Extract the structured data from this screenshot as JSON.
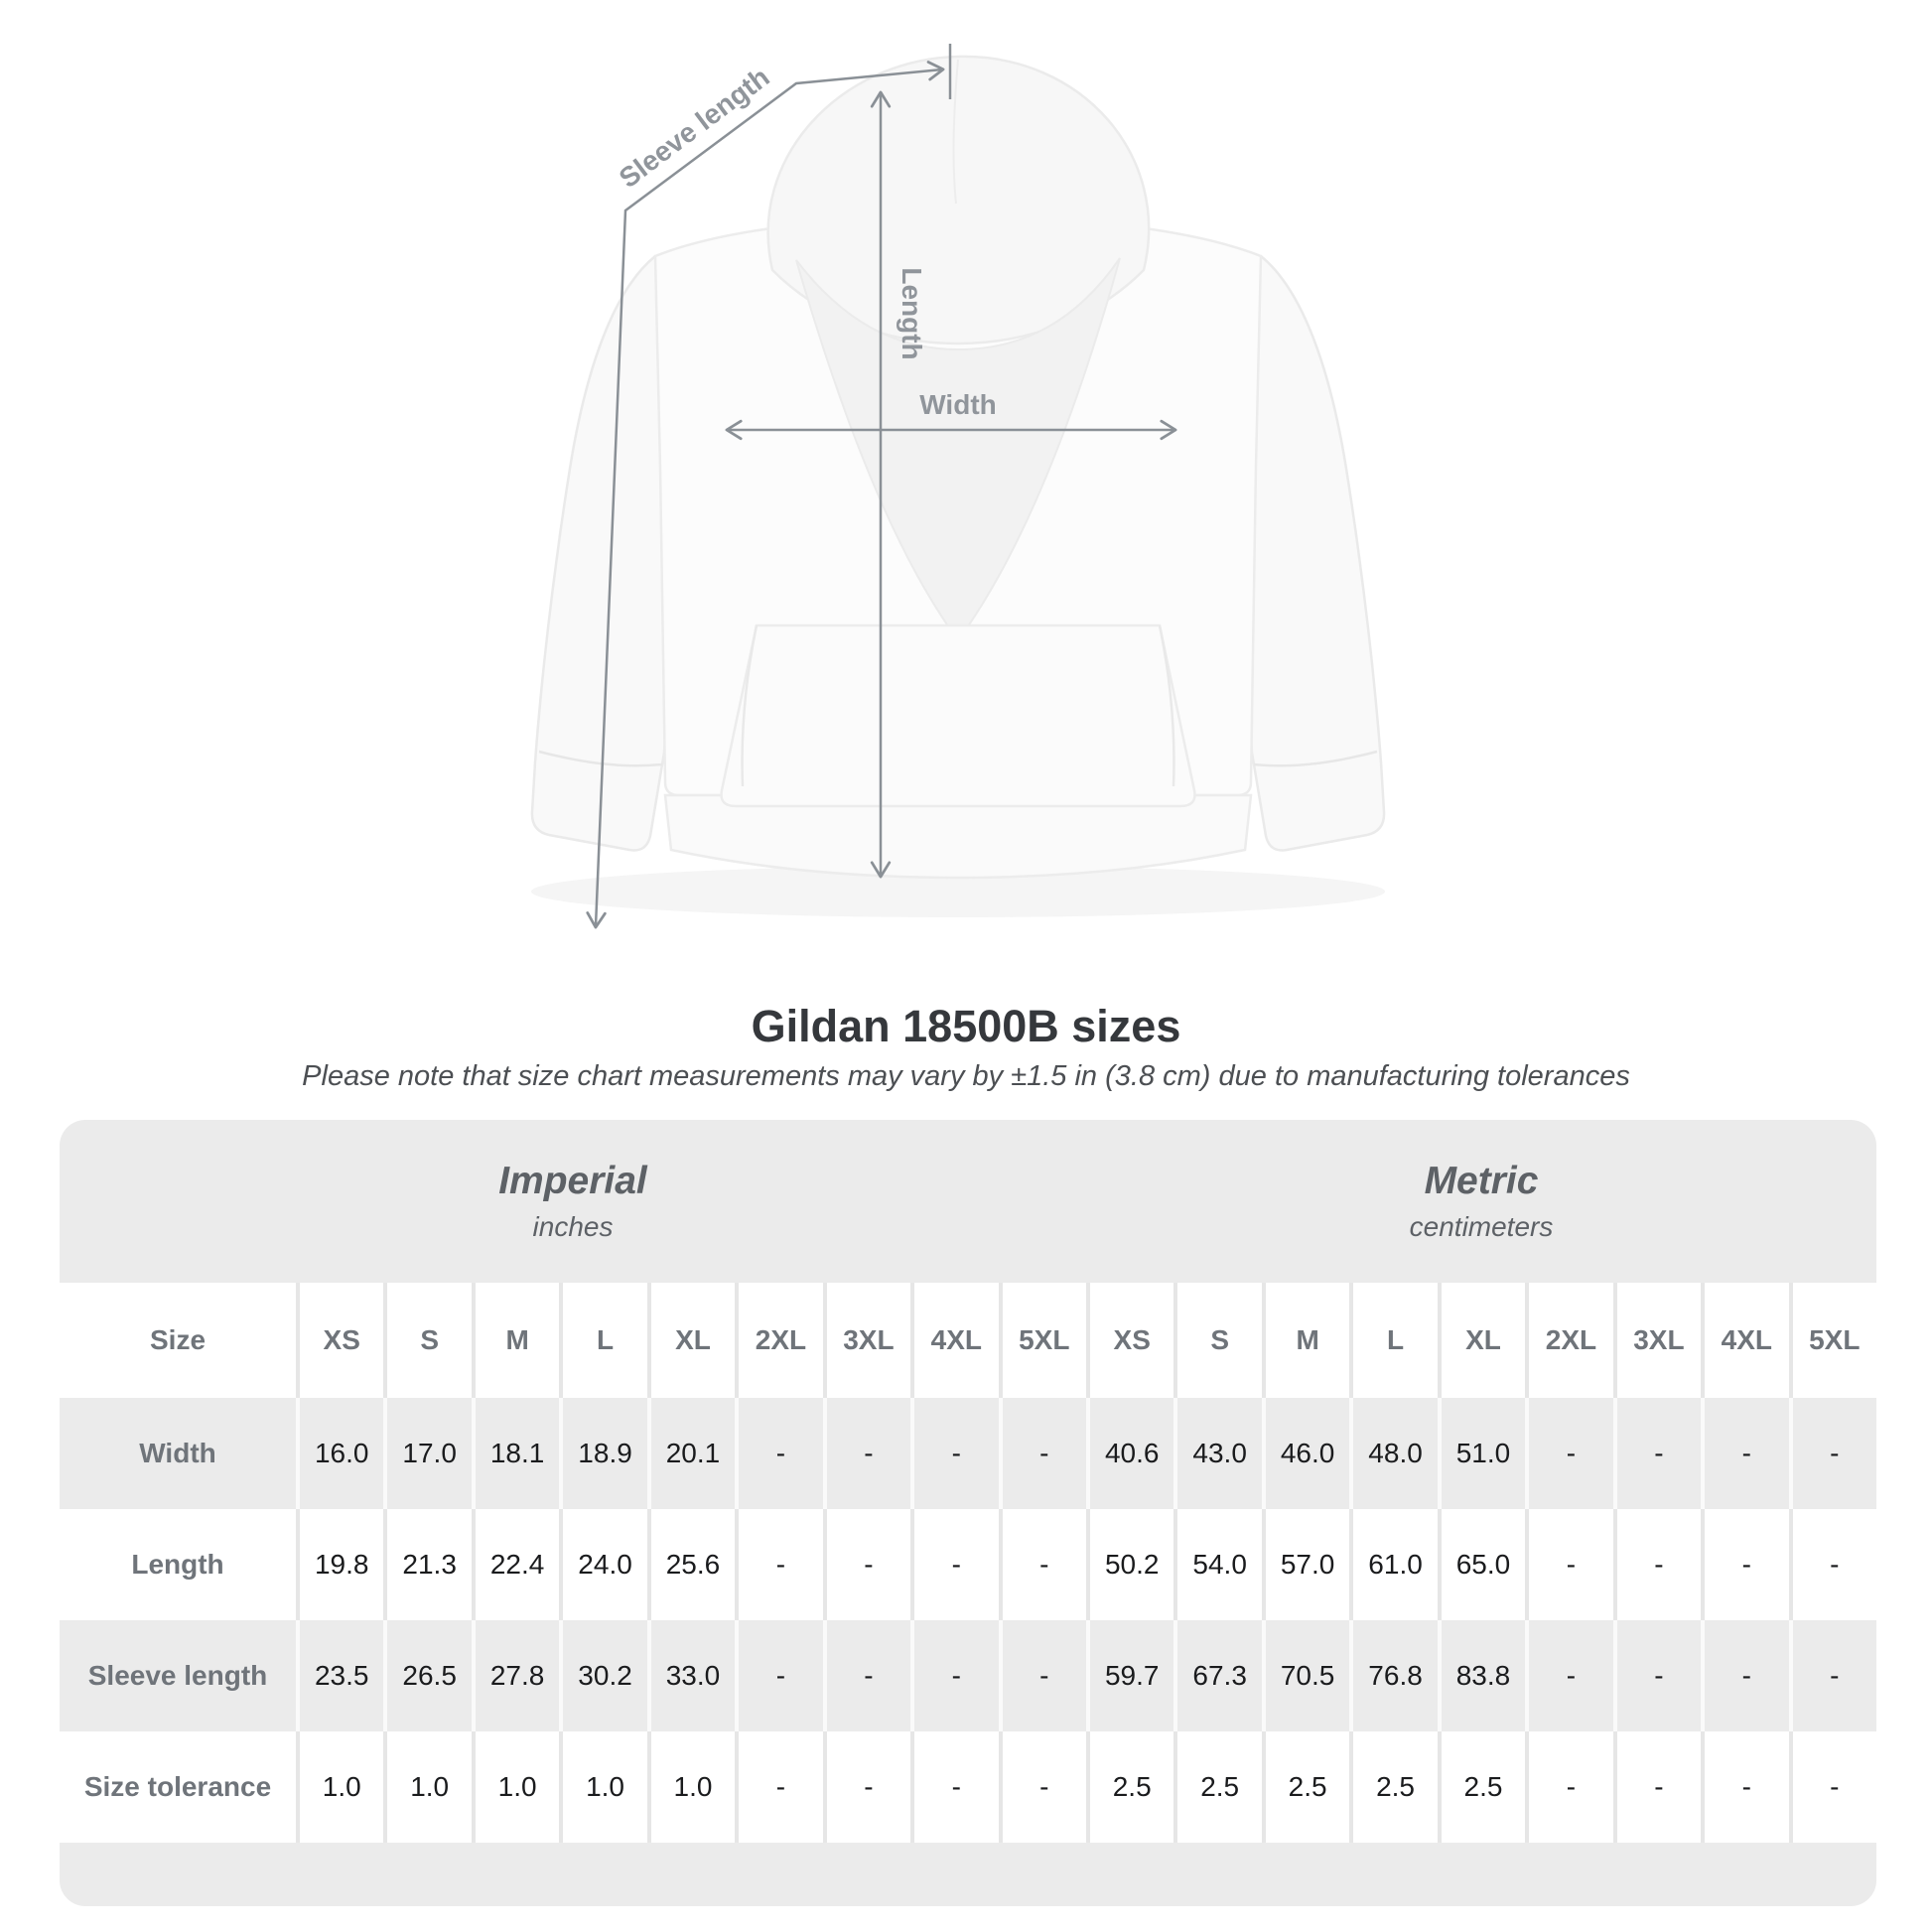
{
  "chart_data": {
    "type": "table",
    "title": "Gildan 18500B sizes",
    "subtitle": "Please note that size chart measurements may vary by ±1.5 in (3.8 cm) due to manufacturing tolerances",
    "corner_label": "Size",
    "sections": [
      {
        "label": "Imperial",
        "units": "inches"
      },
      {
        "label": "Metric",
        "units": "centimeters"
      }
    ],
    "size_columns": [
      "XS",
      "S",
      "M",
      "L",
      "XL",
      "2XL",
      "3XL",
      "4XL",
      "5XL"
    ],
    "rows": [
      {
        "label": "Width",
        "imperial": [
          16.0,
          17.0,
          18.1,
          18.9,
          20.1,
          null,
          null,
          null,
          null
        ],
        "metric": [
          40.6,
          43.0,
          46.0,
          48.0,
          51.0,
          null,
          null,
          null,
          null
        ]
      },
      {
        "label": "Length",
        "imperial": [
          19.8,
          21.3,
          22.4,
          24.0,
          25.6,
          null,
          null,
          null,
          null
        ],
        "metric": [
          50.2,
          54.0,
          57.0,
          61.0,
          65.0,
          null,
          null,
          null,
          null
        ]
      },
      {
        "label": "Sleeve length",
        "imperial": [
          23.5,
          26.5,
          27.8,
          30.2,
          33.0,
          null,
          null,
          null,
          null
        ],
        "metric": [
          59.7,
          67.3,
          70.5,
          76.8,
          83.8,
          null,
          null,
          null,
          null
        ]
      },
      {
        "label": "Size tolerance",
        "imperial": [
          1.0,
          1.0,
          1.0,
          1.0,
          1.0,
          null,
          null,
          null,
          null
        ],
        "metric": [
          2.5,
          2.5,
          2.5,
          2.5,
          2.5,
          null,
          null,
          null,
          null
        ]
      }
    ],
    "missing_value_display": "-",
    "layout": {
      "legend": false,
      "grid": false,
      "row_striping": "white/gray alternating"
    }
  },
  "diagram": {
    "labels": {
      "sleeve_length": "Sleeve length",
      "length": "Length",
      "width": "Width"
    }
  },
  "colors": {
    "measure_line": "#8a9096",
    "measure_label": "#90959b",
    "card_bg": "#ebebeb",
    "value_text": "#1a1b1d",
    "heading_text": "#6f747a",
    "title_text": "#35383c"
  }
}
